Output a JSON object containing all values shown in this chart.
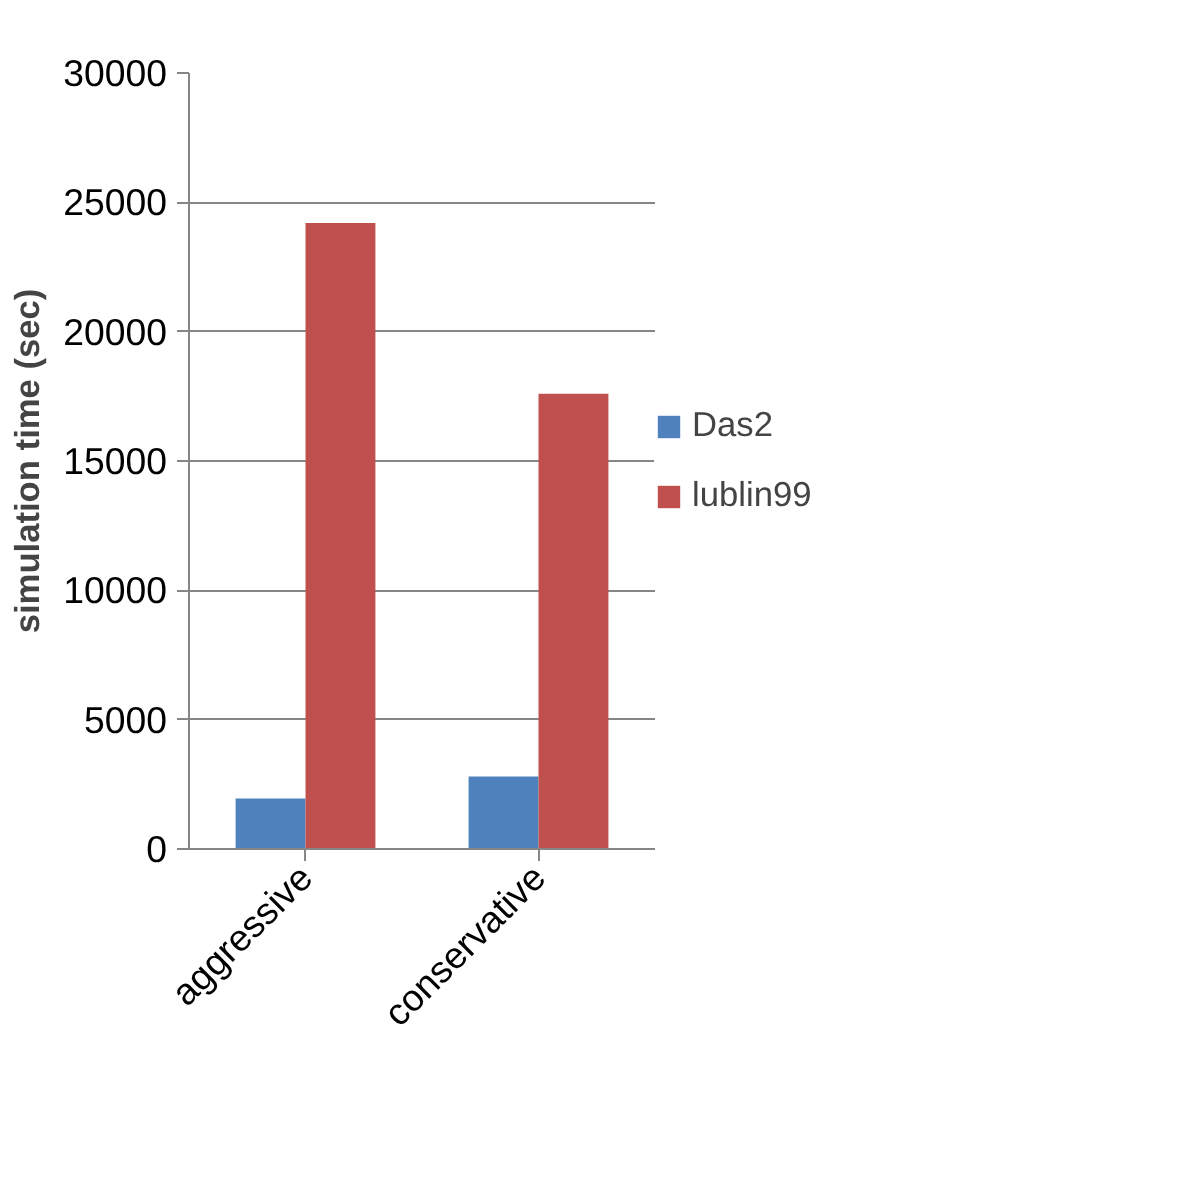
{
  "chart_data": {
    "type": "bar",
    "ylabel": "simulation time (sec)",
    "categories": [
      "aggressive",
      "conservative"
    ],
    "series": [
      {
        "name": "Das2",
        "color": "#4f81bd",
        "values": [
          1950,
          2800
        ]
      },
      {
        "name": "lublin99",
        "color": "#c0504d",
        "values": [
          24200,
          17600
        ]
      }
    ],
    "ylim": [
      0,
      30000
    ],
    "yticks": [
      0,
      5000,
      10000,
      15000,
      20000,
      25000,
      30000
    ],
    "grid": "y",
    "legend": "right"
  }
}
